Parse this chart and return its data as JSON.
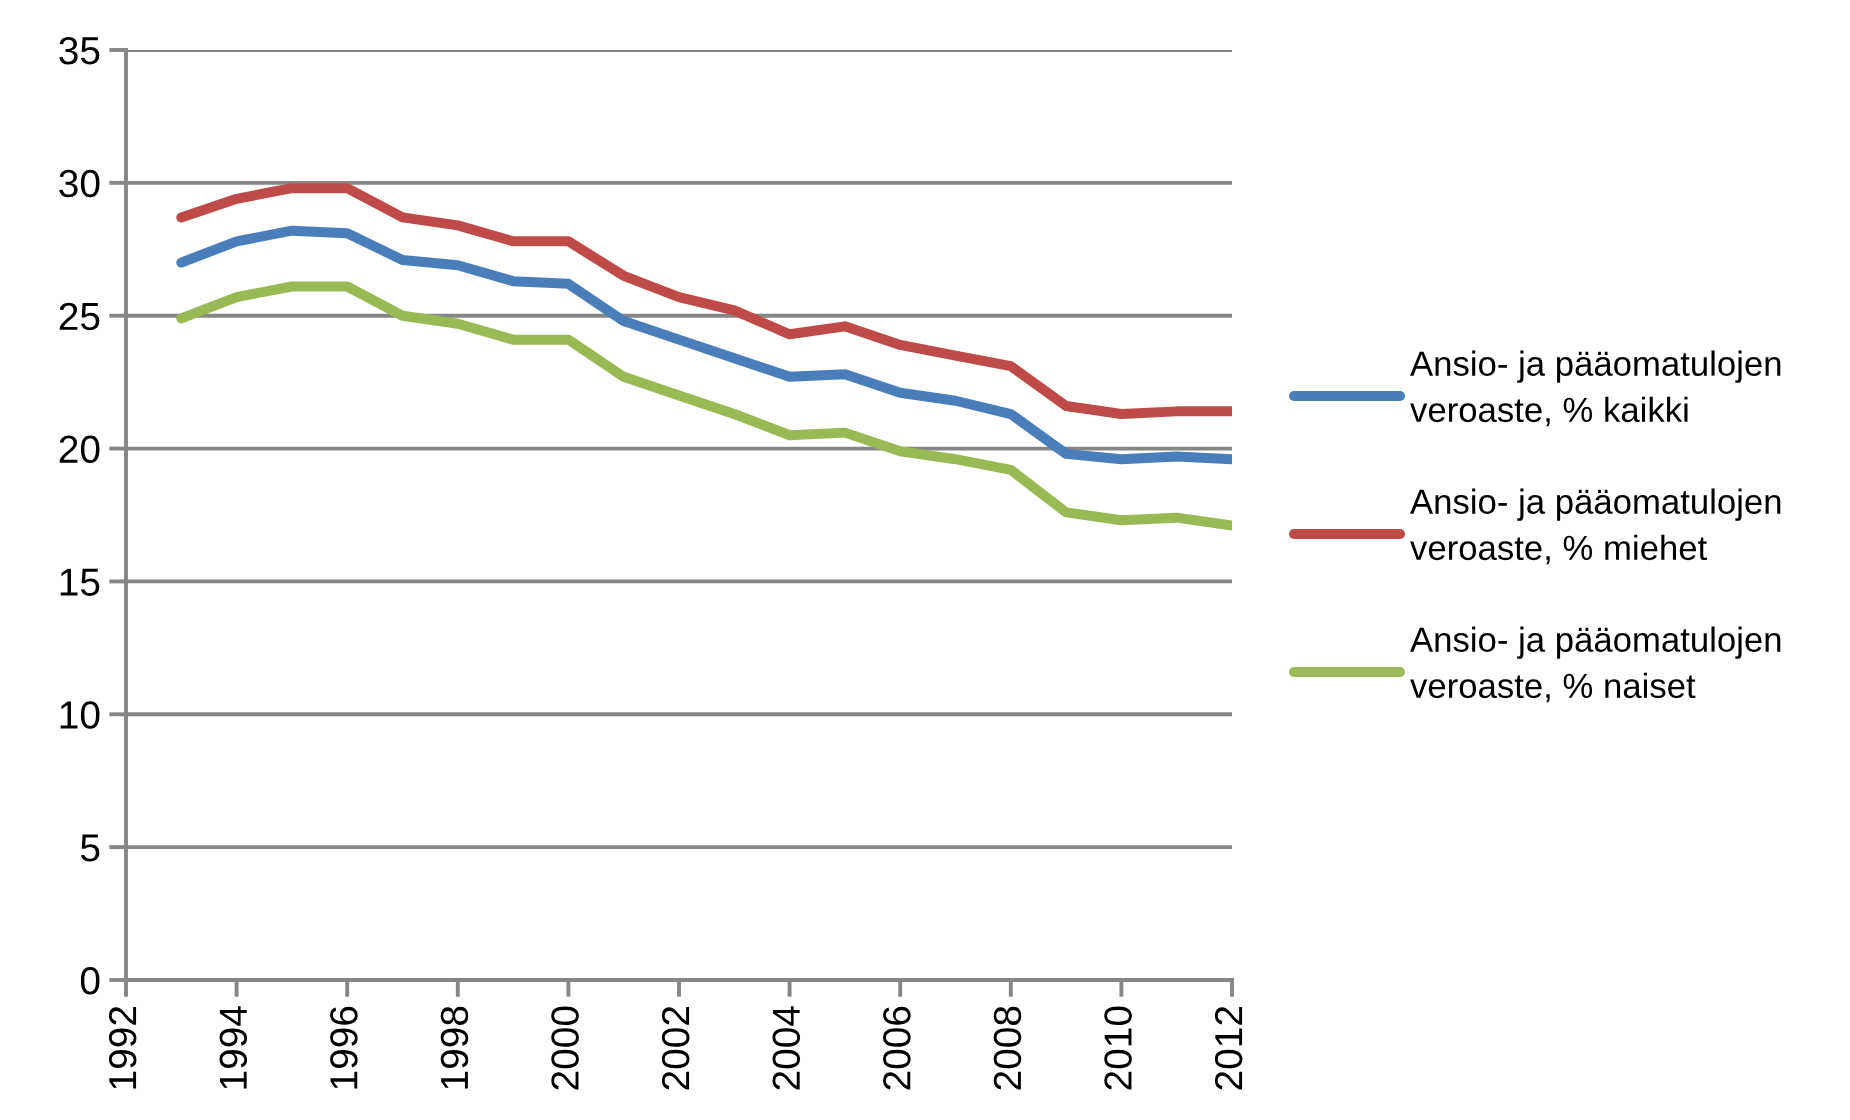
{
  "chart_data": {
    "type": "line",
    "x": [
      1993,
      1994,
      1995,
      1996,
      1997,
      1998,
      1999,
      2000,
      2001,
      2002,
      2003,
      2004,
      2005,
      2006,
      2007,
      2008,
      2009,
      2010,
      2011,
      2012
    ],
    "series": [
      {
        "name": "Ansio- ja pääomatulojen veroaste, % kaikki",
        "color": "#4a7ebb",
        "values": [
          27.0,
          27.8,
          28.2,
          28.1,
          27.1,
          26.9,
          26.3,
          26.2,
          24.8,
          24.1,
          23.4,
          22.7,
          22.8,
          22.1,
          21.8,
          21.3,
          19.8,
          19.6,
          19.7,
          19.6
        ]
      },
      {
        "name": "Ansio- ja pääomatulojen veroaste, % miehet",
        "color": "#be4b48",
        "values": [
          28.7,
          29.4,
          29.8,
          29.8,
          28.7,
          28.4,
          27.8,
          27.8,
          26.5,
          25.7,
          25.2,
          24.3,
          24.6,
          23.9,
          23.5,
          23.1,
          21.6,
          21.3,
          21.4,
          21.4
        ]
      },
      {
        "name": "Ansio- ja pääomatulojen veroaste, % naiset",
        "color": "#98b954",
        "values": [
          24.9,
          25.7,
          26.1,
          26.1,
          25.0,
          24.7,
          24.1,
          24.1,
          22.7,
          22.0,
          21.3,
          20.5,
          20.6,
          19.9,
          19.6,
          19.2,
          17.6,
          17.3,
          17.4,
          17.1
        ]
      }
    ],
    "xlim": [
      1992,
      2012
    ],
    "xticks": [
      1992,
      1994,
      1996,
      1998,
      2000,
      2002,
      2004,
      2006,
      2008,
      2010,
      2012
    ],
    "ylim": [
      0,
      35
    ],
    "yticks": [
      0,
      5,
      10,
      15,
      20,
      25,
      30,
      35
    ],
    "grid": "y",
    "legend": "right"
  }
}
